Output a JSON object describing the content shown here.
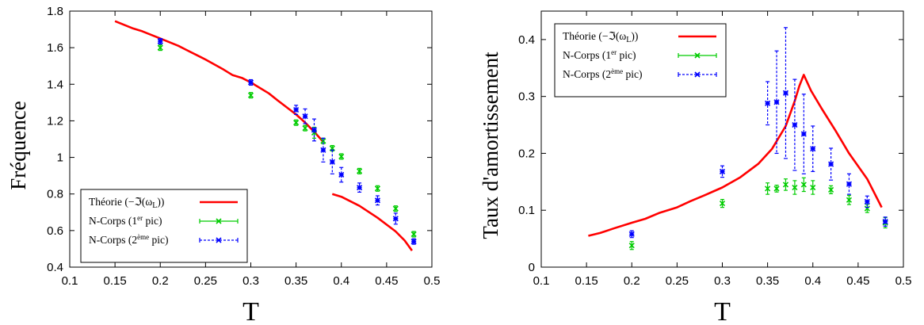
{
  "chart_data": [
    {
      "type": "line",
      "xlabel": "T",
      "ylabel": "Fréquence",
      "xlim": [
        0.1,
        0.5
      ],
      "ylim": [
        0.4,
        1.8
      ],
      "xticks": [
        "0.1",
        "0.15",
        "0.2",
        "0.25",
        "0.3",
        "0.35",
        "0.4",
        "0.45",
        "0.5"
      ],
      "yticks": [
        "0.4",
        "0.6",
        "0.8",
        "1",
        "1.2",
        "1.4",
        "1.6",
        "1.8"
      ],
      "legend_position": "bottom-left",
      "series": [
        {
          "name": "Théorie (−ℑ(ω_L))",
          "legend_label": "Théorie (−ℑ(ω",
          "legend_sub": "L",
          "legend_tail": "))",
          "style": "line",
          "color": "#ff0000",
          "segments": [
            [
              [
                0.15,
                1.745
              ],
              [
                0.17,
                1.705
              ],
              [
                0.18,
                1.69
              ],
              [
                0.2,
                1.65
              ],
              [
                0.22,
                1.61
              ],
              [
                0.23,
                1.585
              ],
              [
                0.25,
                1.535
              ],
              [
                0.27,
                1.48
              ],
              [
                0.28,
                1.45
              ],
              [
                0.29,
                1.435
              ],
              [
                0.3,
                1.41
              ],
              [
                0.32,
                1.35
              ],
              [
                0.33,
                1.31
              ],
              [
                0.35,
                1.235
              ],
              [
                0.36,
                1.19
              ],
              [
                0.37,
                1.14
              ],
              [
                0.38,
                1.085
              ]
            ],
            [
              [
                0.39,
                0.8
              ],
              [
                0.4,
                0.785
              ],
              [
                0.42,
                0.735
              ],
              [
                0.44,
                0.67
              ],
              [
                0.46,
                0.595
              ],
              [
                0.47,
                0.545
              ],
              [
                0.478,
                0.49
              ]
            ]
          ]
        },
        {
          "name": "N-Corps (1er pic)",
          "legend_label": "N-Corps (1",
          "legend_sup": "er",
          "legend_tail": " pic)",
          "style": "errorbar",
          "color": "#00cc00",
          "points": [
            {
              "x": 0.2,
              "y": 1.6,
              "err": 0.015
            },
            {
              "x": 0.3,
              "y": 1.34,
              "err": 0.015
            },
            {
              "x": 0.35,
              "y": 1.19,
              "err": 0.015
            },
            {
              "x": 0.36,
              "y": 1.16,
              "err": 0.015
            },
            {
              "x": 0.37,
              "y": 1.135,
              "err": 0.03
            },
            {
              "x": 0.38,
              "y": 1.09,
              "err": 0.015
            },
            {
              "x": 0.39,
              "y": 1.05,
              "err": 0.015
            },
            {
              "x": 0.4,
              "y": 1.005,
              "err": 0.015
            },
            {
              "x": 0.42,
              "y": 0.925,
              "err": 0.015
            },
            {
              "x": 0.44,
              "y": 0.83,
              "err": 0.015
            },
            {
              "x": 0.46,
              "y": 0.72,
              "err": 0.015
            },
            {
              "x": 0.48,
              "y": 0.58,
              "err": 0.015
            }
          ]
        },
        {
          "name": "N-Corps (2ème pic)",
          "legend_label": "N-Corps (2",
          "legend_sup": "ème",
          "legend_tail": " pic)",
          "style": "errorbar",
          "color": "#0000ff",
          "points": [
            {
              "x": 0.2,
              "y": 1.635,
              "err": 0.015
            },
            {
              "x": 0.3,
              "y": 1.41,
              "err": 0.015
            },
            {
              "x": 0.35,
              "y": 1.26,
              "err": 0.025
            },
            {
              "x": 0.36,
              "y": 1.225,
              "err": 0.04
            },
            {
              "x": 0.37,
              "y": 1.15,
              "err": 0.06
            },
            {
              "x": 0.38,
              "y": 1.04,
              "err": 0.065
            },
            {
              "x": 0.39,
              "y": 0.975,
              "err": 0.065
            },
            {
              "x": 0.4,
              "y": 0.905,
              "err": 0.04
            },
            {
              "x": 0.42,
              "y": 0.835,
              "err": 0.025
            },
            {
              "x": 0.44,
              "y": 0.765,
              "err": 0.025
            },
            {
              "x": 0.46,
              "y": 0.665,
              "err": 0.03
            },
            {
              "x": 0.48,
              "y": 0.54,
              "err": 0.015
            }
          ]
        }
      ]
    },
    {
      "type": "line",
      "xlabel": "T",
      "ylabel": "Taux d'amortissement",
      "xlim": [
        0.1,
        0.5
      ],
      "ylim": [
        0,
        0.45
      ],
      "xticks": [
        "0.1",
        "0.15",
        "0.2",
        "0.25",
        "0.3",
        "0.35",
        "0.4",
        "0.45",
        "0.5"
      ],
      "yticks": [
        "0",
        "0.1",
        "0.2",
        "0.3",
        "0.4"
      ],
      "legend_position": "top-left",
      "series": [
        {
          "name": "Théorie (−ℑ(ω_L))",
          "legend_label": "Théorie (−ℑ(ω",
          "legend_sub": "L",
          "legend_tail": "))",
          "style": "line",
          "color": "#ff0000",
          "segments": [
            [
              [
                0.152,
                0.055
              ],
              [
                0.165,
                0.06
              ],
              [
                0.18,
                0.068
              ],
              [
                0.2,
                0.078
              ],
              [
                0.215,
                0.085
              ],
              [
                0.23,
                0.095
              ],
              [
                0.25,
                0.105
              ],
              [
                0.265,
                0.116
              ],
              [
                0.28,
                0.126
              ],
              [
                0.29,
                0.133
              ],
              [
                0.3,
                0.14
              ],
              [
                0.32,
                0.158
              ],
              [
                0.34,
                0.182
              ],
              [
                0.355,
                0.208
              ],
              [
                0.37,
                0.248
              ],
              [
                0.38,
                0.292
              ],
              [
                0.385,
                0.318
              ],
              [
                0.39,
                0.338
              ],
              [
                0.398,
                0.31
              ],
              [
                0.41,
                0.278
              ],
              [
                0.425,
                0.24
              ],
              [
                0.44,
                0.2
              ],
              [
                0.46,
                0.155
              ],
              [
                0.476,
                0.105
              ]
            ]
          ]
        },
        {
          "name": "N-Corps (1er pic)",
          "legend_label": "N-Corps (1",
          "legend_sup": "er",
          "legend_tail": " pic)",
          "style": "errorbar",
          "color": "#00cc00",
          "points": [
            {
              "x": 0.2,
              "y": 0.038,
              "err": 0.007
            },
            {
              "x": 0.3,
              "y": 0.112,
              "err": 0.007
            },
            {
              "x": 0.35,
              "y": 0.138,
              "err": 0.01
            },
            {
              "x": 0.36,
              "y": 0.138,
              "err": 0.006
            },
            {
              "x": 0.37,
              "y": 0.145,
              "err": 0.01
            },
            {
              "x": 0.38,
              "y": 0.14,
              "err": 0.012
            },
            {
              "x": 0.39,
              "y": 0.145,
              "err": 0.012
            },
            {
              "x": 0.4,
              "y": 0.14,
              "err": 0.012
            },
            {
              "x": 0.42,
              "y": 0.136,
              "err": 0.007
            },
            {
              "x": 0.44,
              "y": 0.118,
              "err": 0.008
            },
            {
              "x": 0.46,
              "y": 0.103,
              "err": 0.007
            },
            {
              "x": 0.48,
              "y": 0.078,
              "err": 0.009
            }
          ]
        },
        {
          "name": "N-Corps (2ème pic)",
          "legend_label": "N-Corps (2",
          "legend_sup": "ème",
          "legend_tail": " pic)",
          "style": "errorbar",
          "color": "#0000ff",
          "points": [
            {
              "x": 0.2,
              "y": 0.058,
              "err": 0.006
            },
            {
              "x": 0.3,
              "y": 0.168,
              "err": 0.01
            },
            {
              "x": 0.35,
              "y": 0.288,
              "err": 0.038
            },
            {
              "x": 0.36,
              "y": 0.29,
              "err": 0.09
            },
            {
              "x": 0.37,
              "y": 0.306,
              "err": 0.115
            },
            {
              "x": 0.38,
              "y": 0.25,
              "err": 0.08
            },
            {
              "x": 0.39,
              "y": 0.234,
              "err": 0.07
            },
            {
              "x": 0.4,
              "y": 0.208,
              "err": 0.04
            },
            {
              "x": 0.42,
              "y": 0.181,
              "err": 0.028
            },
            {
              "x": 0.44,
              "y": 0.146,
              "err": 0.018
            },
            {
              "x": 0.46,
              "y": 0.115,
              "err": 0.01
            },
            {
              "x": 0.48,
              "y": 0.08,
              "err": 0.008
            }
          ]
        }
      ]
    }
  ]
}
